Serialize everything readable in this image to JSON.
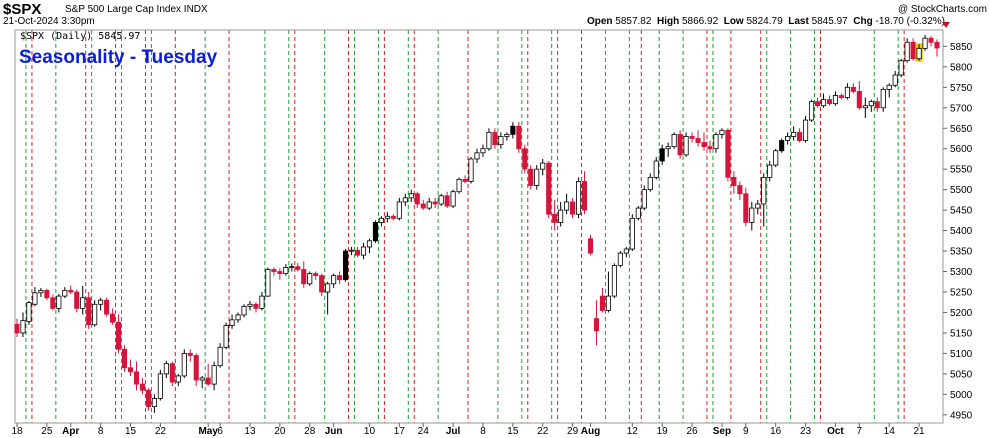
{
  "header": {
    "symbol": "$SPX",
    "name": "S&P 500 Large Cap Index INDX",
    "date": "21-Oct-2024 3:30pm",
    "watermark": "@ StockCharts.com",
    "open_label": "Open",
    "open": "5857.82",
    "high_label": "High",
    "high": "5866.92",
    "low_label": "Low",
    "low": "5824.79",
    "last_label": "Last",
    "last": "5845.97",
    "chg_label": "Chg",
    "chg": "-18.70 (-0.32%)"
  },
  "colors": {
    "down": "#d4163c",
    "up_fill": "#ffffff",
    "up_black": "#000000",
    "green_line": "#1f9e34",
    "red_line": "#d42020",
    "title": "#0a1fd6"
  },
  "chart_data": {
    "type": "candlestick",
    "title": "Seasonality - Tuesday",
    "series_label": "$SPX (Daily) 5845.97",
    "ylim": [
      4930,
      5890
    ],
    "yticks": [
      4950,
      5000,
      5050,
      5100,
      5150,
      5200,
      5250,
      5300,
      5350,
      5400,
      5450,
      5500,
      5550,
      5600,
      5650,
      5700,
      5750,
      5800,
      5850
    ],
    "xticks": [
      {
        "label": "18",
        "i": 0
      },
      {
        "label": "25",
        "i": 5
      },
      {
        "label": "Apr",
        "i": 9,
        "bold": true
      },
      {
        "label": "8",
        "i": 14
      },
      {
        "label": "15",
        "i": 19
      },
      {
        "label": "22",
        "i": 24
      },
      {
        "label": "May",
        "i": 32,
        "bold": true
      },
      {
        "label": "6",
        "i": 34
      },
      {
        "label": "13",
        "i": 39
      },
      {
        "label": "20",
        "i": 44
      },
      {
        "label": "28",
        "i": 49
      },
      {
        "label": "Jun",
        "i": 53,
        "bold": true
      },
      {
        "label": "10",
        "i": 59
      },
      {
        "label": "17",
        "i": 64
      },
      {
        "label": "24",
        "i": 68
      },
      {
        "label": "Jul",
        "i": 73,
        "bold": true
      },
      {
        "label": "8",
        "i": 78
      },
      {
        "label": "15",
        "i": 83
      },
      {
        "label": "22",
        "i": 88
      },
      {
        "label": "29",
        "i": 93
      },
      {
        "label": "Aug",
        "i": 96,
        "bold": true
      },
      {
        "label": "12",
        "i": 103
      },
      {
        "label": "19",
        "i": 108
      },
      {
        "label": "26",
        "i": 113
      },
      {
        "label": "Sep",
        "i": 118,
        "bold": true
      },
      {
        "label": "9",
        "i": 122
      },
      {
        "label": "16",
        "i": 127
      },
      {
        "label": "23",
        "i": 132
      },
      {
        "label": "Oct",
        "i": 137,
        "bold": true
      },
      {
        "label": "7",
        "i": 141
      },
      {
        "label": "14",
        "i": 146
      },
      {
        "label": "21",
        "i": 151
      }
    ],
    "red_lines": [
      2,
      11,
      16,
      21,
      26,
      35,
      46,
      55,
      61,
      66,
      75,
      85,
      90,
      94,
      104,
      115,
      119,
      124,
      134,
      148
    ],
    "green_lines": [
      1,
      6,
      12,
      17,
      22,
      31,
      41,
      45,
      51,
      56,
      60,
      65,
      70,
      80,
      84,
      89,
      98,
      102,
      107,
      111,
      116,
      125,
      129,
      133,
      143,
      147
    ],
    "candles": [
      {
        "o": 5171,
        "h": 5185,
        "l": 5140,
        "c": 5150
      },
      {
        "o": 5150,
        "h": 5200,
        "l": 5140,
        "c": 5180
      },
      {
        "o": 5178,
        "h": 5228,
        "l": 5170,
        "c": 5224
      },
      {
        "o": 5220,
        "h": 5262,
        "l": 5215,
        "c": 5248
      },
      {
        "o": 5248,
        "h": 5260,
        "l": 5238,
        "c": 5254
      },
      {
        "o": 5254,
        "h": 5258,
        "l": 5230,
        "c": 5236
      },
      {
        "o": 5236,
        "h": 5244,
        "l": 5205,
        "c": 5210
      },
      {
        "o": 5210,
        "h": 5245,
        "l": 5200,
        "c": 5240
      },
      {
        "o": 5240,
        "h": 5262,
        "l": 5235,
        "c": 5254
      },
      {
        "o": 5254,
        "h": 5266,
        "l": 5245,
        "c": 5250
      },
      {
        "o": 5250,
        "h": 5256,
        "l": 5200,
        "c": 5210
      },
      {
        "o": 5210,
        "h": 5265,
        "l": 5195,
        "c": 5236
      },
      {
        "o": 5236,
        "h": 5250,
        "l": 5160,
        "c": 5170
      },
      {
        "o": 5170,
        "h": 5230,
        "l": 5165,
        "c": 5220
      },
      {
        "o": 5220,
        "h": 5236,
        "l": 5205,
        "c": 5230
      },
      {
        "o": 5230,
        "h": 5236,
        "l": 5190,
        "c": 5196
      },
      {
        "o": 5196,
        "h": 5210,
        "l": 5170,
        "c": 5176
      },
      {
        "o": 5176,
        "h": 5196,
        "l": 5100,
        "c": 5110
      },
      {
        "o": 5110,
        "h": 5120,
        "l": 5055,
        "c": 5065
      },
      {
        "o": 5065,
        "h": 5085,
        "l": 5045,
        "c": 5055
      },
      {
        "o": 5055,
        "h": 5080,
        "l": 5010,
        "c": 5025
      },
      {
        "o": 5025,
        "h": 5040,
        "l": 5000,
        "c": 5010
      },
      {
        "o": 5010,
        "h": 5015,
        "l": 4960,
        "c": 4970
      },
      {
        "o": 4970,
        "h": 5000,
        "l": 4955,
        "c": 4990
      },
      {
        "o": 4990,
        "h": 5060,
        "l": 4985,
        "c": 5050
      },
      {
        "o": 5050,
        "h": 5082,
        "l": 5040,
        "c": 5075
      },
      {
        "o": 5075,
        "h": 5080,
        "l": 5020,
        "c": 5030
      },
      {
        "o": 5030,
        "h": 5050,
        "l": 5020,
        "c": 5045
      },
      {
        "o": 5045,
        "h": 5110,
        "l": 5040,
        "c": 5100
      },
      {
        "o": 5100,
        "h": 5110,
        "l": 5080,
        "c": 5095
      },
      {
        "o": 5095,
        "h": 5100,
        "l": 5020,
        "c": 5035
      },
      {
        "o": 5035,
        "h": 5045,
        "l": 5015,
        "c": 5040
      },
      {
        "o": 5040,
        "h": 5075,
        "l": 5020,
        "c": 5025
      },
      {
        "o": 5025,
        "h": 5080,
        "l": 5010,
        "c": 5070
      },
      {
        "o": 5070,
        "h": 5125,
        "l": 5065,
        "c": 5115
      },
      {
        "o": 5115,
        "h": 5175,
        "l": 5110,
        "c": 5168
      },
      {
        "o": 5168,
        "h": 5195,
        "l": 5160,
        "c": 5182
      },
      {
        "o": 5182,
        "h": 5200,
        "l": 5175,
        "c": 5194
      },
      {
        "o": 5194,
        "h": 5220,
        "l": 5188,
        "c": 5215
      },
      {
        "o": 5215,
        "h": 5228,
        "l": 5205,
        "c": 5220
      },
      {
        "o": 5220,
        "h": 5225,
        "l": 5200,
        "c": 5210
      },
      {
        "o": 5210,
        "h": 5250,
        "l": 5205,
        "c": 5240
      },
      {
        "o": 5240,
        "h": 5310,
        "l": 5238,
        "c": 5305
      },
      {
        "o": 5305,
        "h": 5310,
        "l": 5290,
        "c": 5300
      },
      {
        "o": 5300,
        "h": 5308,
        "l": 5280,
        "c": 5295
      },
      {
        "o": 5295,
        "h": 5318,
        "l": 5290,
        "c": 5310
      },
      {
        "o": 5310,
        "h": 5320,
        "l": 5300,
        "c": 5312
      },
      {
        "o": 5312,
        "h": 5321,
        "l": 5300,
        "c": 5305
      },
      {
        "o": 5305,
        "h": 5325,
        "l": 5260,
        "c": 5270
      },
      {
        "o": 5270,
        "h": 5300,
        "l": 5265,
        "c": 5295
      },
      {
        "o": 5295,
        "h": 5300,
        "l": 5280,
        "c": 5290
      },
      {
        "o": 5290,
        "h": 5295,
        "l": 5240,
        "c": 5250
      },
      {
        "o": 5250,
        "h": 5275,
        "l": 5195,
        "c": 5270
      },
      {
        "o": 5270,
        "h": 5295,
        "l": 5260,
        "c": 5290
      },
      {
        "o": 5290,
        "h": 5300,
        "l": 5270,
        "c": 5280
      },
      {
        "o": 5280,
        "h": 5355,
        "l": 5275,
        "c": 5350
      },
      {
        "o": 5350,
        "h": 5360,
        "l": 5340,
        "c": 5352
      },
      {
        "o": 5352,
        "h": 5360,
        "l": 5335,
        "c": 5340
      },
      {
        "o": 5340,
        "h": 5370,
        "l": 5330,
        "c": 5360
      },
      {
        "o": 5360,
        "h": 5380,
        "l": 5345,
        "c": 5375
      },
      {
        "o": 5375,
        "h": 5425,
        "l": 5370,
        "c": 5420
      },
      {
        "o": 5420,
        "h": 5435,
        "l": 5410,
        "c": 5430
      },
      {
        "o": 5430,
        "h": 5445,
        "l": 5420,
        "c": 5435
      },
      {
        "o": 5435,
        "h": 5440,
        "l": 5425,
        "c": 5430
      },
      {
        "o": 5430,
        "h": 5480,
        "l": 5425,
        "c": 5470
      },
      {
        "o": 5470,
        "h": 5490,
        "l": 5460,
        "c": 5480
      },
      {
        "o": 5480,
        "h": 5500,
        "l": 5470,
        "c": 5490
      },
      {
        "o": 5490,
        "h": 5495,
        "l": 5455,
        "c": 5465
      },
      {
        "o": 5465,
        "h": 5475,
        "l": 5450,
        "c": 5455
      },
      {
        "o": 5455,
        "h": 5480,
        "l": 5450,
        "c": 5470
      },
      {
        "o": 5470,
        "h": 5480,
        "l": 5455,
        "c": 5465
      },
      {
        "o": 5465,
        "h": 5490,
        "l": 5460,
        "c": 5485
      },
      {
        "o": 5485,
        "h": 5495,
        "l": 5455,
        "c": 5460
      },
      {
        "o": 5460,
        "h": 5500,
        "l": 5455,
        "c": 5495
      },
      {
        "o": 5495,
        "h": 5530,
        "l": 5490,
        "c": 5525
      },
      {
        "o": 5525,
        "h": 5535,
        "l": 5515,
        "c": 5520
      },
      {
        "o": 5520,
        "h": 5580,
        "l": 5515,
        "c": 5575
      },
      {
        "o": 5575,
        "h": 5600,
        "l": 5565,
        "c": 5590
      },
      {
        "o": 5590,
        "h": 5610,
        "l": 5580,
        "c": 5600
      },
      {
        "o": 5600,
        "h": 5650,
        "l": 5595,
        "c": 5640
      },
      {
        "o": 5640,
        "h": 5650,
        "l": 5600,
        "c": 5610
      },
      {
        "o": 5610,
        "h": 5640,
        "l": 5600,
        "c": 5630
      },
      {
        "o": 5630,
        "h": 5640,
        "l": 5620,
        "c": 5635
      },
      {
        "o": 5635,
        "h": 5665,
        "l": 5625,
        "c": 5655
      },
      {
        "o": 5655,
        "h": 5665,
        "l": 5590,
        "c": 5600
      },
      {
        "o": 5600,
        "h": 5610,
        "l": 5540,
        "c": 5550
      },
      {
        "o": 5550,
        "h": 5560,
        "l": 5500,
        "c": 5510
      },
      {
        "o": 5510,
        "h": 5560,
        "l": 5500,
        "c": 5550
      },
      {
        "o": 5550,
        "h": 5575,
        "l": 5535,
        "c": 5565
      },
      {
        "o": 5565,
        "h": 5570,
        "l": 5430,
        "c": 5440
      },
      {
        "o": 5440,
        "h": 5475,
        "l": 5400,
        "c": 5420
      },
      {
        "o": 5420,
        "h": 5470,
        "l": 5410,
        "c": 5450
      },
      {
        "o": 5450,
        "h": 5490,
        "l": 5440,
        "c": 5470
      },
      {
        "o": 5470,
        "h": 5480,
        "l": 5430,
        "c": 5440
      },
      {
        "o": 5440,
        "h": 5530,
        "l": 5430,
        "c": 5520
      },
      {
        "o": 5520,
        "h": 5545,
        "l": 5440,
        "c": 5450
      },
      {
        "o": 5380,
        "h": 5390,
        "l": 5340,
        "c": 5345
      },
      {
        "o": 5185,
        "h": 5230,
        "l": 5120,
        "c": 5155
      },
      {
        "o": 5240,
        "h": 5260,
        "l": 5200,
        "c": 5205
      },
      {
        "o": 5205,
        "h": 5300,
        "l": 5200,
        "c": 5240
      },
      {
        "o": 5240,
        "h": 5320,
        "l": 5235,
        "c": 5315
      },
      {
        "o": 5315,
        "h": 5350,
        "l": 5310,
        "c": 5345
      },
      {
        "o": 5345,
        "h": 5360,
        "l": 5335,
        "c": 5355
      },
      {
        "o": 5355,
        "h": 5440,
        "l": 5350,
        "c": 5430
      },
      {
        "o": 5430,
        "h": 5460,
        "l": 5425,
        "c": 5455
      },
      {
        "o": 5455,
        "h": 5510,
        "l": 5450,
        "c": 5500
      },
      {
        "o": 5500,
        "h": 5540,
        "l": 5495,
        "c": 5530
      },
      {
        "o": 5530,
        "h": 5580,
        "l": 5525,
        "c": 5570
      },
      {
        "o": 5570,
        "h": 5610,
        "l": 5560,
        "c": 5600
      },
      {
        "o": 5600,
        "h": 5615,
        "l": 5580,
        "c": 5605
      },
      {
        "o": 5605,
        "h": 5640,
        "l": 5600,
        "c": 5635
      },
      {
        "o": 5635,
        "h": 5645,
        "l": 5575,
        "c": 5585
      },
      {
        "o": 5585,
        "h": 5640,
        "l": 5580,
        "c": 5630
      },
      {
        "o": 5630,
        "h": 5640,
        "l": 5615,
        "c": 5625
      },
      {
        "o": 5625,
        "h": 5645,
        "l": 5605,
        "c": 5615
      },
      {
        "o": 5615,
        "h": 5640,
        "l": 5595,
        "c": 5605
      },
      {
        "o": 5605,
        "h": 5620,
        "l": 5590,
        "c": 5600
      },
      {
        "o": 5600,
        "h": 5640,
        "l": 5590,
        "c": 5635
      },
      {
        "o": 5635,
        "h": 5650,
        "l": 5625,
        "c": 5645
      },
      {
        "o": 5645,
        "h": 5650,
        "l": 5520,
        "c": 5530
      },
      {
        "o": 5530,
        "h": 5545,
        "l": 5490,
        "c": 5510
      },
      {
        "o": 5510,
        "h": 5520,
        "l": 5475,
        "c": 5490
      },
      {
        "o": 5490,
        "h": 5505,
        "l": 5410,
        "c": 5420
      },
      {
        "o": 5420,
        "h": 5470,
        "l": 5400,
        "c": 5455
      },
      {
        "o": 5455,
        "h": 5475,
        "l": 5440,
        "c": 5465
      },
      {
        "o": 5465,
        "h": 5540,
        "l": 5410,
        "c": 5530
      },
      {
        "o": 5530,
        "h": 5570,
        "l": 5520,
        "c": 5560
      },
      {
        "o": 5560,
        "h": 5600,
        "l": 5555,
        "c": 5595
      },
      {
        "o": 5595,
        "h": 5625,
        "l": 5590,
        "c": 5620
      },
      {
        "o": 5620,
        "h": 5640,
        "l": 5610,
        "c": 5630
      },
      {
        "o": 5630,
        "h": 5655,
        "l": 5620,
        "c": 5640
      },
      {
        "o": 5640,
        "h": 5650,
        "l": 5615,
        "c": 5620
      },
      {
        "o": 5620,
        "h": 5680,
        "l": 5615,
        "c": 5670
      },
      {
        "o": 5670,
        "h": 5720,
        "l": 5665,
        "c": 5715
      },
      {
        "o": 5715,
        "h": 5725,
        "l": 5700,
        "c": 5705
      },
      {
        "o": 5705,
        "h": 5735,
        "l": 5700,
        "c": 5720
      },
      {
        "o": 5720,
        "h": 5730,
        "l": 5705,
        "c": 5710
      },
      {
        "o": 5710,
        "h": 5740,
        "l": 5705,
        "c": 5730
      },
      {
        "o": 5730,
        "h": 5735,
        "l": 5720,
        "c": 5725
      },
      {
        "o": 5725,
        "h": 5760,
        "l": 5720,
        "c": 5750
      },
      {
        "o": 5750,
        "h": 5760,
        "l": 5735,
        "c": 5740
      },
      {
        "o": 5740,
        "h": 5765,
        "l": 5695,
        "c": 5700
      },
      {
        "o": 5700,
        "h": 5725,
        "l": 5675,
        "c": 5705
      },
      {
        "o": 5705,
        "h": 5720,
        "l": 5690,
        "c": 5715
      },
      {
        "o": 5715,
        "h": 5725,
        "l": 5690,
        "c": 5700
      },
      {
        "o": 5700,
        "h": 5750,
        "l": 5690,
        "c": 5745
      },
      {
        "o": 5745,
        "h": 5760,
        "l": 5725,
        "c": 5755
      },
      {
        "o": 5755,
        "h": 5790,
        "l": 5750,
        "c": 5780
      },
      {
        "o": 5780,
        "h": 5820,
        "l": 5775,
        "c": 5815
      },
      {
        "o": 5815,
        "h": 5870,
        "l": 5810,
        "c": 5860
      },
      {
        "o": 5860,
        "h": 5870,
        "l": 5815,
        "c": 5820
      },
      {
        "o": 5820,
        "h": 5855,
        "l": 5815,
        "c": 5845
      },
      {
        "o": 5845,
        "h": 5878,
        "l": 5840,
        "c": 5870
      },
      {
        "o": 5870,
        "h": 5875,
        "l": 5850,
        "c": 5860
      },
      {
        "o": 5860,
        "h": 5867,
        "l": 5825,
        "c": 5846
      }
    ],
    "black_indices": [
      5,
      55,
      60,
      83,
      97,
      108,
      128,
      140
    ],
    "last_highlight_index": 151
  }
}
